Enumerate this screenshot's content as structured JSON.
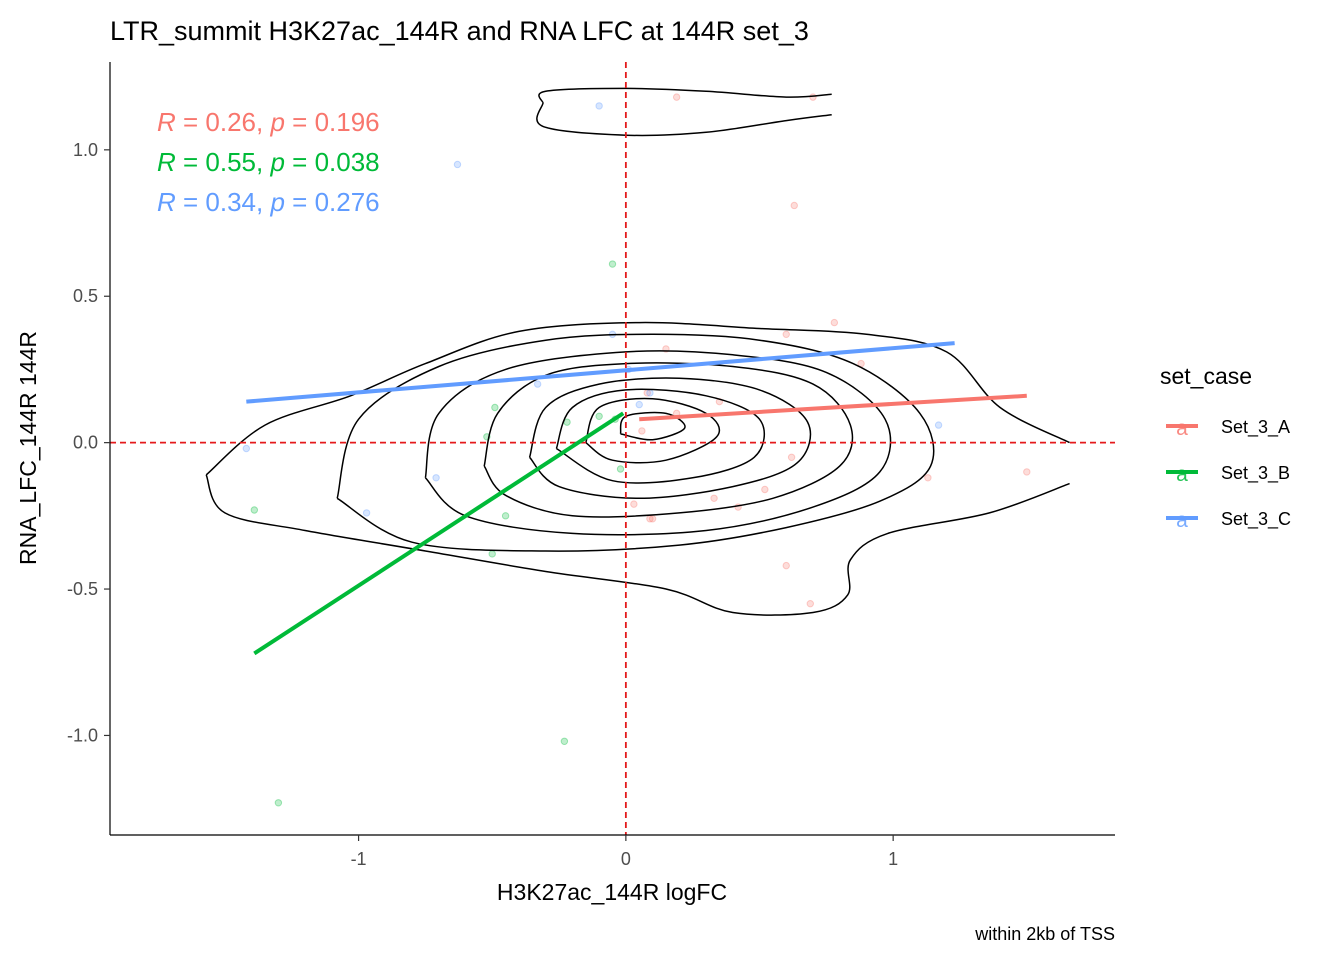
{
  "chart_data": {
    "type": "scatter",
    "title": "LTR_summit H3K27ac_144R and RNA LFC at 144R set_3",
    "xlabel": "H3K27ac_144R logFC",
    "ylabel": "RNA_LFC_144R 144R",
    "caption": "within 2kb of TSS",
    "xlim": [
      -1.93,
      1.83
    ],
    "ylim": [
      -1.34,
      1.3
    ],
    "x_ticks": [
      -1,
      0,
      1
    ],
    "x_tick_labels": [
      "-1",
      "0",
      "1"
    ],
    "y_ticks": [
      -1.0,
      -0.5,
      0.0,
      0.5,
      1.0
    ],
    "y_tick_labels": [
      "-1.0",
      "-0.5",
      "0.0",
      "0.5",
      "1.0"
    ],
    "grid": false,
    "reference_lines": {
      "x": 0,
      "y": 0,
      "color": "#e41a1c",
      "style": "dashed"
    },
    "legend": {
      "title": "set_case",
      "position": "right",
      "entries": [
        {
          "label": "Set_3_A",
          "color": "#F8766D"
        },
        {
          "label": "Set_3_B",
          "color": "#00BA38"
        },
        {
          "label": "Set_3_C",
          "color": "#619CFF"
        }
      ]
    },
    "annotations": [
      {
        "color": "#F8766D",
        "r_symbol": "R",
        "r_text": " = 0.26, ",
        "p_symbol": "p",
        "p_text": " = 0.196"
      },
      {
        "color": "#00BA38",
        "r_symbol": "R",
        "r_text": " = 0.55, ",
        "p_symbol": "p",
        "p_text": " = 0.038"
      },
      {
        "color": "#619CFF",
        "r_symbol": "R",
        "r_text": " = 0.34, ",
        "p_symbol": "p",
        "p_text": " = 0.276"
      }
    ],
    "series": [
      {
        "name": "Set_3_A",
        "color": "#F8766D",
        "points": [
          [
            0.19,
            1.18
          ],
          [
            0.7,
            1.18
          ],
          [
            0.63,
            0.81
          ],
          [
            0.78,
            0.41
          ],
          [
            0.6,
            0.37
          ],
          [
            0.15,
            0.32
          ],
          [
            0.88,
            0.27
          ],
          [
            0.08,
            0.17
          ],
          [
            0.35,
            0.14
          ],
          [
            0.19,
            0.1
          ],
          [
            0.06,
            0.04
          ],
          [
            0.62,
            -0.05
          ],
          [
            1.13,
            -0.12
          ],
          [
            1.5,
            -0.1
          ],
          [
            0.52,
            -0.16
          ],
          [
            0.33,
            -0.19
          ],
          [
            0.42,
            -0.22
          ],
          [
            0.09,
            -0.26
          ],
          [
            0.1,
            -0.26
          ],
          [
            0.6,
            -0.42
          ],
          [
            0.69,
            -0.55
          ],
          [
            0.03,
            -0.21
          ]
        ],
        "fit": {
          "x": [
            0.05,
            1.5
          ],
          "y": [
            0.08,
            0.16
          ]
        }
      },
      {
        "name": "Set_3_B",
        "color": "#00BA38",
        "points": [
          [
            -0.05,
            0.61
          ],
          [
            -0.49,
            0.12
          ],
          [
            -0.52,
            0.02
          ],
          [
            -0.22,
            0.07
          ],
          [
            -0.1,
            0.09
          ],
          [
            -0.04,
            0.08
          ],
          [
            -0.02,
            -0.09
          ],
          [
            -0.45,
            -0.25
          ],
          [
            -0.5,
            -0.38
          ],
          [
            -1.39,
            -0.23
          ],
          [
            -0.23,
            -1.02
          ],
          [
            -1.3,
            -1.23
          ]
        ],
        "fit": {
          "x": [
            -1.39,
            -0.01
          ],
          "y": [
            -0.72,
            0.1
          ]
        }
      },
      {
        "name": "Set_3_C",
        "color": "#619CFF",
        "points": [
          [
            -0.1,
            1.15
          ],
          [
            -0.63,
            0.95
          ],
          [
            -0.05,
            0.37
          ],
          [
            -0.33,
            0.2
          ],
          [
            0.01,
            0.25
          ],
          [
            0.09,
            0.17
          ],
          [
            0.05,
            0.13
          ],
          [
            1.17,
            0.06
          ],
          [
            -0.71,
            -0.12
          ],
          [
            -0.97,
            -0.24
          ],
          [
            -1.42,
            -0.02
          ]
        ],
        "fit": {
          "x": [
            -1.42,
            1.23
          ],
          "y": [
            0.14,
            0.34
          ]
        }
      }
    ],
    "density_contours": [
      [
        [
          -1.57,
          -0.11
        ],
        [
          -1.35,
          0.06
        ],
        [
          -1.03,
          0.16
        ],
        [
          -0.75,
          0.27
        ],
        [
          -0.4,
          0.38
        ],
        [
          0.05,
          0.41
        ],
        [
          0.5,
          0.39
        ],
        [
          0.9,
          0.37
        ],
        [
          1.2,
          0.31
        ],
        [
          1.4,
          0.12
        ],
        [
          1.66,
          0.0
        ]
      ],
      [
        [
          1.66,
          -0.14
        ],
        [
          1.36,
          -0.24
        ],
        [
          0.98,
          -0.31
        ],
        [
          0.84,
          -0.4
        ],
        [
          0.83,
          -0.52
        ],
        [
          0.7,
          -0.58
        ],
        [
          0.4,
          -0.58
        ],
        [
          0.15,
          -0.5
        ],
        [
          -0.3,
          -0.44
        ],
        [
          -0.75,
          -0.37
        ],
        [
          -1.2,
          -0.3
        ],
        [
          -1.5,
          -0.24
        ],
        [
          -1.57,
          -0.11
        ]
      ],
      [
        [
          -0.31,
          1.16
        ],
        [
          -0.3,
          1.2
        ],
        [
          0,
          1.21
        ],
        [
          0.3,
          1.2
        ],
        [
          0.6,
          1.18
        ],
        [
          0.77,
          1.19
        ]
      ],
      [
        [
          -0.31,
          1.16
        ],
        [
          -0.31,
          1.08
        ],
        [
          0,
          1.05
        ],
        [
          0.3,
          1.06
        ],
        [
          0.6,
          1.1
        ],
        [
          0.77,
          1.12
        ]
      ],
      [
        [
          -1.08,
          -0.19
        ],
        [
          -1.0,
          0.08
        ],
        [
          -0.7,
          0.26
        ],
        [
          -0.3,
          0.35
        ],
        [
          0.1,
          0.37
        ],
        [
          0.5,
          0.35
        ],
        [
          0.85,
          0.27
        ],
        [
          1.1,
          0.1
        ],
        [
          1.14,
          -0.08
        ],
        [
          0.95,
          -0.2
        ],
        [
          0.6,
          -0.29
        ],
        [
          0.2,
          -0.35
        ],
        [
          -0.3,
          -0.37
        ],
        [
          -0.8,
          -0.34
        ],
        [
          -1.08,
          -0.19
        ]
      ],
      [
        [
          -0.75,
          -0.12
        ],
        [
          -0.7,
          0.1
        ],
        [
          -0.45,
          0.25
        ],
        [
          0,
          0.31
        ],
        [
          0.4,
          0.3
        ],
        [
          0.75,
          0.24
        ],
        [
          0.97,
          0.08
        ],
        [
          0.95,
          -0.1
        ],
        [
          0.7,
          -0.22
        ],
        [
          0.3,
          -0.3
        ],
        [
          -0.2,
          -0.31
        ],
        [
          -0.6,
          -0.25
        ],
        [
          -0.75,
          -0.12
        ]
      ],
      [
        [
          -0.53,
          -0.08
        ],
        [
          -0.48,
          0.1
        ],
        [
          -0.3,
          0.23
        ],
        [
          0,
          0.27
        ],
        [
          0.4,
          0.26
        ],
        [
          0.7,
          0.2
        ],
        [
          0.84,
          0.06
        ],
        [
          0.8,
          -0.08
        ],
        [
          0.55,
          -0.19
        ],
        [
          0.2,
          -0.24
        ],
        [
          -0.2,
          -0.25
        ],
        [
          -0.45,
          -0.18
        ],
        [
          -0.53,
          -0.08
        ]
      ],
      [
        [
          -0.36,
          -0.05
        ],
        [
          -0.3,
          0.12
        ],
        [
          -0.1,
          0.2
        ],
        [
          0.2,
          0.22
        ],
        [
          0.5,
          0.18
        ],
        [
          0.68,
          0.07
        ],
        [
          0.64,
          -0.07
        ],
        [
          0.4,
          -0.15
        ],
        [
          0.05,
          -0.19
        ],
        [
          -0.25,
          -0.15
        ],
        [
          -0.36,
          -0.05
        ]
      ],
      [
        [
          -0.26,
          -0.02
        ],
        [
          -0.2,
          0.12
        ],
        [
          0,
          0.18
        ],
        [
          0.3,
          0.16
        ],
        [
          0.5,
          0.08
        ],
        [
          0.48,
          -0.05
        ],
        [
          0.25,
          -0.12
        ],
        [
          -0.05,
          -0.13
        ],
        [
          -0.26,
          -0.02
        ]
      ],
      [
        [
          -0.15,
          0.0
        ],
        [
          -0.1,
          0.12
        ],
        [
          0.1,
          0.15
        ],
        [
          0.3,
          0.1
        ],
        [
          0.34,
          0.02
        ],
        [
          0.15,
          -0.06
        ],
        [
          -0.05,
          -0.06
        ],
        [
          -0.15,
          0.0
        ]
      ],
      [
        [
          -0.02,
          0.03
        ],
        [
          0.0,
          0.09
        ],
        [
          0.15,
          0.1
        ],
        [
          0.22,
          0.05
        ],
        [
          0.1,
          0.01
        ],
        [
          -0.02,
          0.03
        ]
      ]
    ]
  }
}
